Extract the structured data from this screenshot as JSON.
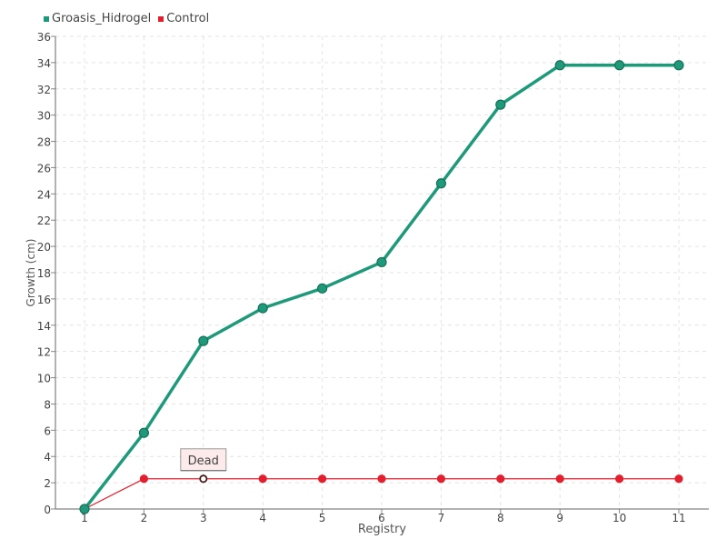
{
  "chart_data": {
    "type": "line",
    "x": [
      1,
      2,
      3,
      4,
      5,
      6,
      7,
      8,
      9,
      10,
      11
    ],
    "xlabel": "Registry",
    "ylabel": "Growth (cm)",
    "ylim": [
      0,
      36
    ],
    "ytick_step": 2,
    "grid": true,
    "legend_position": "top-left",
    "series": [
      {
        "name": "Groasis_Hidrogel",
        "color": "#1e9a7a",
        "values": [
          0,
          5.8,
          12.8,
          15.3,
          16.8,
          18.8,
          24.8,
          30.8,
          33.8,
          33.8,
          33.8
        ]
      },
      {
        "name": "Control",
        "color": "#e41f2d",
        "values": [
          0,
          2.3,
          2.3,
          2.3,
          2.3,
          2.3,
          2.3,
          2.3,
          2.3,
          2.3,
          2.3
        ]
      }
    ],
    "annotations": [
      {
        "text": "Dead",
        "series": "Control",
        "x": 3,
        "y": 2.3
      }
    ]
  }
}
